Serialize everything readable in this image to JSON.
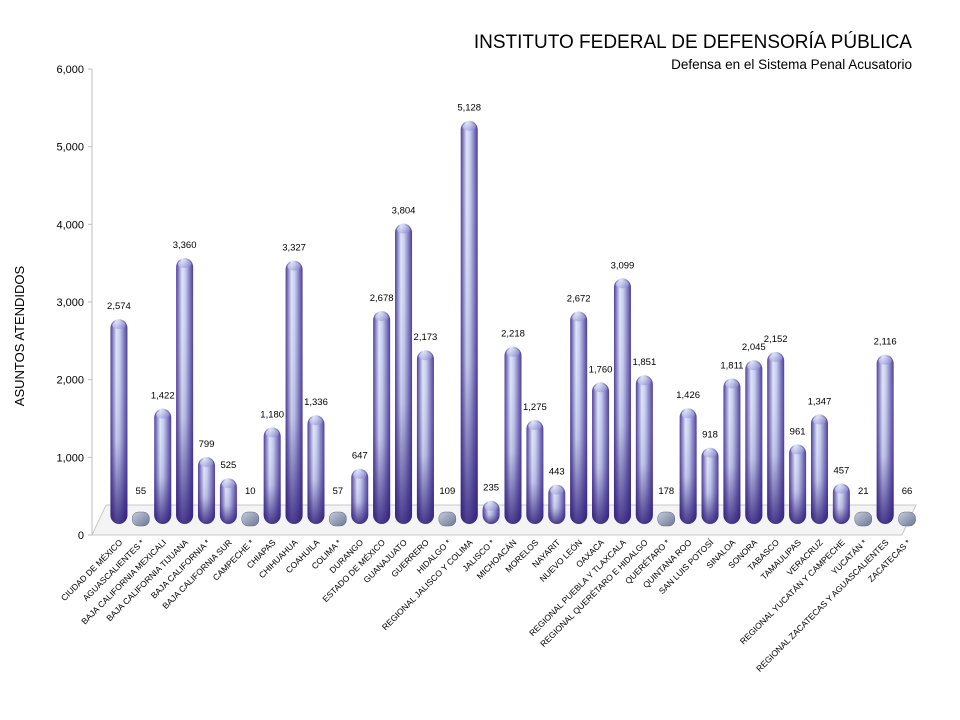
{
  "chart_data": {
    "type": "bar",
    "title": "INSTITUTO FEDERAL DE DEFENSORÍA PÚBLICA",
    "subtitle": "Defensa en el Sistema Penal Acusatorio",
    "ylabel": "ASUNTOS ATENDIDOS",
    "xlabel": "",
    "ylim": [
      0,
      6000
    ],
    "yticks": [
      "0",
      "1,000",
      "2,000",
      "3,000",
      "4,000",
      "5,000",
      "6,000"
    ],
    "grid": false,
    "legend": "none",
    "categories": [
      "CIUDAD DE MÉXICO",
      "AGUASCALIENTES *",
      "BAJA CALIFORNIA MEXICALI",
      "BAJA CALIFORNIA TIJUANA",
      "BAJA CALIFORNIA *",
      "BAJA CALIFORNIA SUR",
      "CAMPECHE *",
      "CHIAPAS",
      "CHIHUAHUA",
      "COAHUILA",
      "COLIMA *",
      "DURANGO",
      "ESTADO DE MÉXICO",
      "GUANAJUATO",
      "GUERRERO",
      "HIDALGO *",
      "REGIONAL JALISCO Y COLIMA",
      "JALISCO *",
      "MICHOACÁN",
      "MORELOS",
      "NAYARIT",
      "NUEVO LEÓN",
      "OAXACA",
      "REGIONAL PUEBLA Y TLAXCALA",
      "REGIONAL QUERÉTARO E HIDALGO",
      "QUERÉTARO *",
      "QUINTANA ROO",
      "SAN LUIS POTOSÍ",
      "SINALOA",
      "SONORA",
      "TABASCO",
      "TAMAULIPAS",
      "VERACRUZ",
      "REGIONAL YUCATÁN Y CAMPECHE",
      "YUCATÁN *",
      "REGIONAL ZACATECAS Y AGUASCALIENTES",
      "ZACATECAS *"
    ],
    "values": [
      2574,
      55,
      1422,
      3360,
      799,
      525,
      10,
      1180,
      3327,
      1336,
      57,
      647,
      2678,
      3804,
      2173,
      109,
      5128,
      235,
      2218,
      1275,
      443,
      2672,
      1760,
      3099,
      1851,
      178,
      1426,
      918,
      1811,
      2045,
      2152,
      961,
      1347,
      457,
      21,
      2116,
      66
    ],
    "labels": [
      "2,574",
      "55",
      "1,422",
      "3,360",
      "799",
      "525",
      "10",
      "1,180",
      "3,327",
      "1,336",
      "57",
      "647",
      "2,678",
      "3,804",
      "2,173",
      "109",
      "5,128",
      "235",
      "2,218",
      "1,275",
      "443",
      "2,672",
      "1,760",
      "3,099",
      "1,851",
      "178",
      "1,426",
      "918",
      "1,811",
      "2,045",
      "2,152",
      "961",
      "1,347",
      "457",
      "21",
      "2,116",
      "66"
    ],
    "colors": {
      "bar_light": "#e4eaf7",
      "bar_mid": "#9aa4da",
      "bar_dark": "#3d2a88",
      "floor": "#d0d0d0"
    }
  }
}
